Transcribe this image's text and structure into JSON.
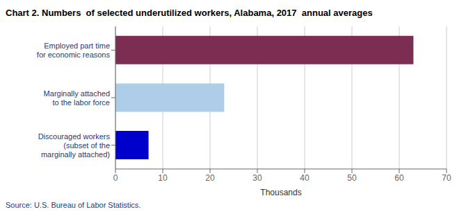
{
  "chart_data": {
    "type": "bar",
    "orientation": "horizontal",
    "title": "Chart 2. Numbers  of selected underutilized workers, Alabama, 2017  annual averages",
    "categories": [
      "Discouraged workers\n(subset of the\nmarginally attached)",
      "Marginally attached\nto the labor force",
      "Employed part time\nfor economic reasons"
    ],
    "values": [
      7,
      23,
      63
    ],
    "colors": [
      "#0000cc",
      "#aecde8",
      "#7b2d52"
    ],
    "xlabel": "Thousands",
    "xlim": [
      0,
      70
    ],
    "xticks": [
      0,
      10,
      20,
      30,
      40,
      50,
      60,
      70
    ],
    "grid": true,
    "annotations": [
      "Source: U.S. Bureau of Labor Statistics."
    ]
  }
}
